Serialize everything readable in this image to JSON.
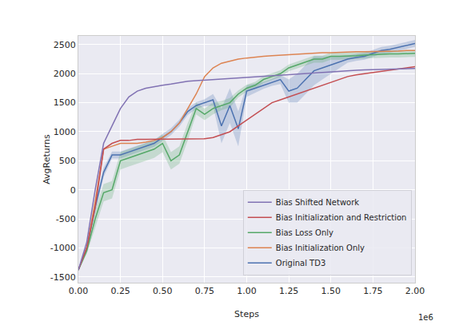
{
  "chart_data": {
    "type": "line",
    "x_label": "Steps",
    "y_label": "AvgReturns",
    "annotations": [
      {
        "text": "1e6"
      }
    ],
    "x": [
      0,
      50000,
      100000,
      150000,
      200000,
      250000,
      300000,
      350000,
      400000,
      450000,
      500000,
      550000,
      600000,
      650000,
      700000,
      750000,
      800000,
      850000,
      900000,
      950000,
      1000000,
      1050000,
      1100000,
      1150000,
      1200000,
      1250000,
      1300000,
      1350000,
      1400000,
      1450000,
      1500000,
      1550000,
      1600000,
      1650000,
      1700000,
      1750000,
      1800000,
      1850000,
      1900000,
      1950000,
      2000000
    ],
    "xlim": [
      0,
      2000000
    ],
    "xticks": [
      {
        "value": 0,
        "label": "0.00"
      },
      {
        "value": 250000,
        "label": "0.25"
      },
      {
        "value": 500000,
        "label": "0.50"
      },
      {
        "value": 750000,
        "label": "0.75"
      },
      {
        "value": 1000000,
        "label": "1.00"
      },
      {
        "value": 1250000,
        "label": "1.25"
      },
      {
        "value": 1500000,
        "label": "1.50"
      },
      {
        "value": 1750000,
        "label": "1.75"
      },
      {
        "value": 2000000,
        "label": "2.00"
      }
    ],
    "ylim": [
      -1600,
      2650
    ],
    "yticks": [
      -1500,
      -1000,
      -500,
      0,
      500,
      1000,
      1500,
      2000,
      2500
    ],
    "grid": true,
    "legend": "lower right",
    "series": [
      {
        "name": "Original TD3",
        "color": "#4c72b0",
        "values": [
          -1380,
          -1000,
          -300,
          300,
          600,
          600,
          650,
          700,
          750,
          800,
          900,
          1000,
          1150,
          1350,
          1450,
          1500,
          1550,
          1100,
          1450,
          1050,
          1700,
          1750,
          1800,
          1850,
          1900,
          1700,
          1750,
          1900,
          2050,
          2100,
          2150,
          2200,
          2250,
          2280,
          2300,
          2350,
          2400,
          2420,
          2450,
          2480,
          2520
        ],
        "error": [
          20,
          50,
          80,
          80,
          60,
          60,
          60,
          60,
          60,
          60,
          60,
          60,
          60,
          60,
          60,
          60,
          100,
          300,
          300,
          300,
          100,
          80,
          60,
          60,
          80,
          200,
          250,
          250,
          250,
          200,
          150,
          100,
          60,
          60,
          60,
          60,
          60,
          60,
          60,
          60,
          60
        ]
      },
      {
        "name": "Bias Initialization Only",
        "color": "#dd8452",
        "values": [
          -1380,
          -1000,
          -200,
          700,
          750,
          800,
          800,
          800,
          820,
          850,
          900,
          1000,
          1150,
          1400,
          1650,
          1950,
          2100,
          2180,
          2220,
          2250,
          2270,
          2290,
          2300,
          2310,
          2320,
          2330,
          2340,
          2350,
          2350,
          2360,
          2360,
          2370,
          2370,
          2380,
          2380,
          2380,
          2390,
          2390,
          2390,
          2400,
          2400
        ]
      },
      {
        "name": "Bias Loss Only",
        "color": "#55a868",
        "values": [
          -1380,
          -1050,
          -500,
          -50,
          0,
          500,
          550,
          600,
          650,
          700,
          800,
          500,
          600,
          1000,
          1400,
          1300,
          1400,
          1450,
          1500,
          1650,
          1750,
          1800,
          1900,
          1950,
          2000,
          2100,
          2150,
          2200,
          2250,
          2250,
          2300,
          2300,
          2300,
          2310,
          2320,
          2330,
          2330,
          2340,
          2340,
          2350,
          2350
        ],
        "error": [
          20,
          50,
          150,
          150,
          150,
          150,
          150,
          150,
          150,
          150,
          150,
          150,
          150,
          150,
          100,
          100,
          100,
          80,
          80,
          60,
          60,
          60,
          60,
          60,
          60,
          60,
          60,
          60,
          60,
          60,
          60,
          60,
          60,
          60,
          60,
          60,
          60,
          60,
          60,
          60,
          60
        ]
      },
      {
        "name": "Bias Initialization and Restriction",
        "color": "#c44e52",
        "values": [
          -1380,
          -1000,
          -300,
          700,
          800,
          850,
          850,
          870,
          870,
          870,
          880,
          880,
          880,
          870,
          870,
          880,
          900,
          950,
          1000,
          1100,
          1200,
          1300,
          1400,
          1500,
          1550,
          1600,
          1650,
          1700,
          1750,
          1800,
          1850,
          1900,
          1950,
          1980,
          2000,
          2020,
          2050,
          2070,
          2090,
          2100,
          2120
        ]
      },
      {
        "name": "Bias Shifted Network",
        "color": "#8172b3",
        "values": [
          -1380,
          -900,
          0,
          800,
          1100,
          1400,
          1600,
          1700,
          1750,
          1780,
          1800,
          1820,
          1850,
          1870,
          1880,
          1890,
          1900,
          1910,
          1920,
          1930,
          1940,
          1950,
          1960,
          1970,
          1980,
          1990,
          2000,
          2010,
          2020,
          2030,
          2040,
          2050,
          2055,
          2060,
          2065,
          2070,
          2075,
          2080,
          2085,
          2090,
          2090
        ]
      }
    ]
  }
}
